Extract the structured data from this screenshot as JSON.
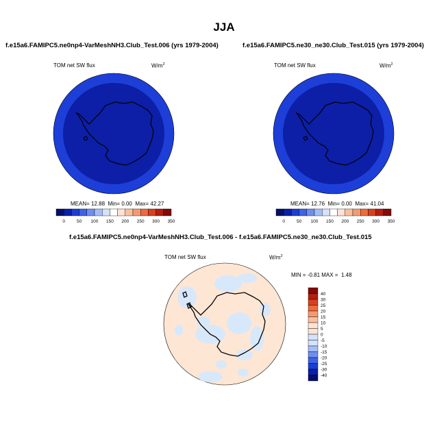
{
  "title": "JJA",
  "panels": [
    {
      "title": "f.e15a6.FAMIPC5.ne0np4-VarMeshNH3.Club_Test.006 (yrs 1979-2004)",
      "variable": "TOM net SW flux",
      "units": "W/m",
      "units_sup": "2",
      "stats": {
        "mean_label": "MEAN=",
        "mean": "12.88",
        "min_label": "Min=",
        "min": "0.00",
        "max_label": "Max=",
        "max": "42.27"
      }
    },
    {
      "title": "f.e15a6.FAMIPC5.ne30_ne30.Club_Test.015 (yrs 1979-2004)",
      "variable": "TOM net SW flux",
      "units": "W/m",
      "units_sup": "2",
      "stats": {
        "mean_label": "MEAN=",
        "mean": "12.76",
        "min_label": "Min=",
        "min": "0.00",
        "max_label": "Max=",
        "max": "41.04"
      }
    },
    {
      "title": "f.e15a6.FAMIPC5.ne0np4-VarMeshNH3.Club_Test.006 - f.e15a6.FAMIPC5.ne30_ne30.Club_Test.015",
      "variable": "TOM net SW flux",
      "units": "W/m",
      "units_sup": "2",
      "stats": {
        "min_label": "MIN =",
        "min": "-0.81",
        "max_label": "MAX =",
        "max": "1.48"
      }
    }
  ],
  "colorbar_abs": {
    "labels": [
      "0",
      "50",
      "100",
      "150",
      "200",
      "250",
      "300",
      "350"
    ],
    "colors": [
      "#050e6c",
      "#0a1fa8",
      "#1a3fd6",
      "#3d63e6",
      "#6d8ff0",
      "#a4bdf7",
      "#d4e2fb",
      "#ffffff",
      "#fde3d3",
      "#fbbf9c",
      "#f59a70",
      "#ef6b3d",
      "#d9401c",
      "#b71c10",
      "#7f0a06"
    ]
  },
  "colorbar_diff": {
    "labels": [
      "40",
      "30",
      "25",
      "20",
      "15",
      "10",
      "5",
      "0",
      "-5",
      "-10",
      "-15",
      "-20",
      "-25",
      "-30",
      "-40"
    ],
    "colors": [
      "#7f0a06",
      "#b71c10",
      "#d9401c",
      "#ef6b3d",
      "#f59a70",
      "#fbbf9c",
      "#fde3d3",
      "#fde3d3",
      "#d4e2fb",
      "#d4e2fb",
      "#a4bdf7",
      "#6d8ff0",
      "#3d63e6",
      "#1a3fd6",
      "#0a1fa8",
      "#050e6c"
    ]
  },
  "map_colors": {
    "abs_outer": "#1d3fd8",
    "abs_inner": "#0c1fa6",
    "diff_bg": "#fde6d4",
    "diff_patch": "#d8e8fb",
    "coast": "#000000"
  }
}
